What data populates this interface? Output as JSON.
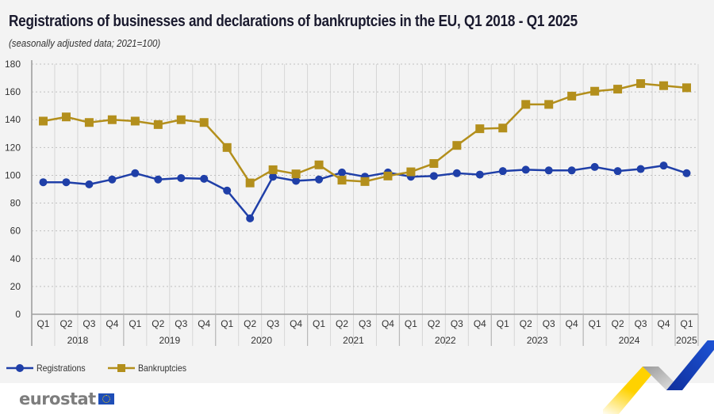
{
  "chart_data": {
    "type": "line",
    "title": "Registrations of businesses and declarations of bankruptcies in the EU, Q1 2018 - Q1 2025",
    "subtitle": "(seasonally adjusted data; 2021=100)",
    "xlabel": "",
    "ylabel": "",
    "ylim": [
      0,
      180
    ],
    "yticks": [
      0,
      20,
      40,
      60,
      80,
      100,
      120,
      140,
      160,
      180
    ],
    "grid": true,
    "legend_position": "bottom-left",
    "x": [
      "Q1",
      "Q2",
      "Q3",
      "Q4",
      "Q1",
      "Q2",
      "Q3",
      "Q4",
      "Q1",
      "Q2",
      "Q3",
      "Q4",
      "Q1",
      "Q2",
      "Q3",
      "Q4",
      "Q1",
      "Q2",
      "Q3",
      "Q4",
      "Q1",
      "Q2",
      "Q3",
      "Q4",
      "Q1",
      "Q2",
      "Q3",
      "Q4",
      "Q1"
    ],
    "year_groups": [
      {
        "label": "2018",
        "count": 4
      },
      {
        "label": "2019",
        "count": 4
      },
      {
        "label": "2020",
        "count": 4
      },
      {
        "label": "2021",
        "count": 4
      },
      {
        "label": "2022",
        "count": 4
      },
      {
        "label": "2023",
        "count": 4
      },
      {
        "label": "2024",
        "count": 4
      },
      {
        "label": "2025",
        "count": 1
      }
    ],
    "series": [
      {
        "name": "Registrations",
        "color": "#1f3fa8",
        "marker": "circle",
        "values": [
          95,
          95,
          93.5,
          97,
          101.5,
          97,
          98,
          97.5,
          89,
          69,
          99,
          96,
          97,
          102,
          99,
          102,
          99,
          99.5,
          101.5,
          100.5,
          103,
          104,
          103.5,
          103.5,
          106,
          103,
          104.5,
          107,
          101.5
        ]
      },
      {
        "name": "Bankruptcies",
        "color": "#b38f1c",
        "marker": "square",
        "values": [
          139,
          142,
          138,
          140,
          139,
          136.5,
          140,
          138,
          120,
          94.5,
          104,
          101,
          107.5,
          96.5,
          95.5,
          99.5,
          102.5,
          108.5,
          121.5,
          133.5,
          134,
          151,
          151,
          157,
          160.5,
          162,
          166,
          164.5,
          163
        ]
      }
    ]
  },
  "branding": {
    "logo_text": "eurostat",
    "colors": {
      "panel_bg": "#f3f3f3",
      "grid": "#c8c8c8",
      "logo_gray": "#7d7d7d",
      "eu_blue": "#1e4db7",
      "eu_yellow": "#ffd200"
    }
  }
}
